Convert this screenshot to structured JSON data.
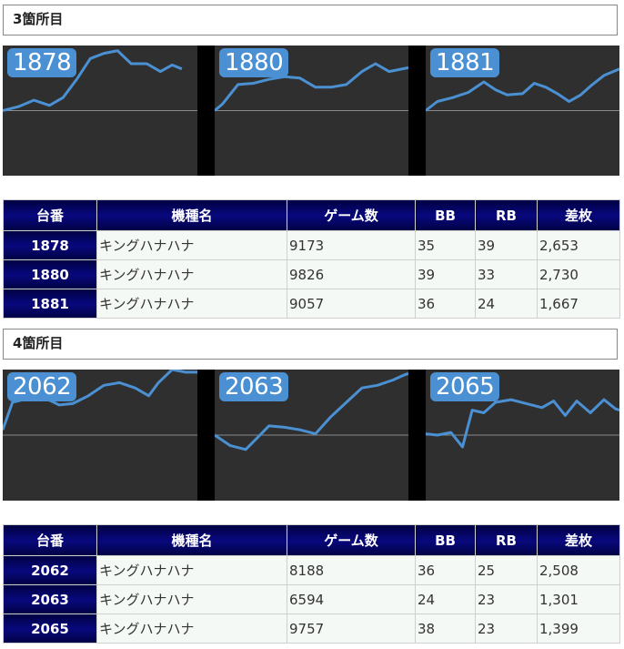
{
  "sections": [
    {
      "title": "3箇所目",
      "graphs": [
        {
          "label": "1878",
          "points": [
            [
              0,
              0.5
            ],
            [
              0.08,
              0.47
            ],
            [
              0.16,
              0.42
            ],
            [
              0.24,
              0.46
            ],
            [
              0.31,
              0.4
            ],
            [
              0.38,
              0.26
            ],
            [
              0.45,
              0.1
            ],
            [
              0.52,
              0.06
            ],
            [
              0.59,
              0.04
            ],
            [
              0.66,
              0.14
            ],
            [
              0.74,
              0.14
            ],
            [
              0.81,
              0.2
            ],
            [
              0.87,
              0.15
            ],
            [
              0.92,
              0.18
            ]
          ]
        },
        {
          "label": "1880",
          "points": [
            [
              0,
              0.5
            ],
            [
              0.04,
              0.45
            ],
            [
              0.12,
              0.3
            ],
            [
              0.2,
              0.29
            ],
            [
              0.28,
              0.26
            ],
            [
              0.36,
              0.24
            ],
            [
              0.44,
              0.25
            ],
            [
              0.52,
              0.32
            ],
            [
              0.6,
              0.32
            ],
            [
              0.68,
              0.3
            ],
            [
              0.76,
              0.2
            ],
            [
              0.83,
              0.14
            ],
            [
              0.9,
              0.2
            ],
            [
              1.0,
              0.17
            ]
          ]
        },
        {
          "label": "1881",
          "points": [
            [
              0,
              0.5
            ],
            [
              0.06,
              0.43
            ],
            [
              0.14,
              0.4
            ],
            [
              0.22,
              0.36
            ],
            [
              0.3,
              0.28
            ],
            [
              0.36,
              0.34
            ],
            [
              0.42,
              0.38
            ],
            [
              0.5,
              0.37
            ],
            [
              0.56,
              0.29
            ],
            [
              0.62,
              0.32
            ],
            [
              0.68,
              0.37
            ],
            [
              0.74,
              0.43
            ],
            [
              0.8,
              0.38
            ],
            [
              0.86,
              0.3
            ],
            [
              0.92,
              0.23
            ],
            [
              1.0,
              0.18
            ]
          ]
        }
      ],
      "table": {
        "headers": [
          "台番",
          "機種名",
          "ゲーム数",
          "BB",
          "RB",
          "差枚"
        ],
        "rows": [
          [
            "1878",
            "キングハナハナ",
            "9173",
            "35",
            "39",
            "2,653"
          ],
          [
            "1880",
            "キングハナハナ",
            "9826",
            "39",
            "33",
            "2,730"
          ],
          [
            "1881",
            "キングハナハナ",
            "9057",
            "36",
            "24",
            "1,667"
          ]
        ]
      }
    },
    {
      "title": "4箇所目",
      "graphs": [
        {
          "label": "2062",
          "points": [
            [
              0,
              0.46
            ],
            [
              0.05,
              0.25
            ],
            [
              0.13,
              0.22
            ],
            [
              0.22,
              0.22
            ],
            [
              0.29,
              0.27
            ],
            [
              0.36,
              0.26
            ],
            [
              0.44,
              0.2
            ],
            [
              0.52,
              0.12
            ],
            [
              0.6,
              0.1
            ],
            [
              0.68,
              0.14
            ],
            [
              0.75,
              0.2
            ],
            [
              0.8,
              0.1
            ],
            [
              0.87,
              0.0
            ],
            [
              0.94,
              0.02
            ],
            [
              1.0,
              0.02
            ]
          ]
        },
        {
          "label": "2063",
          "points": [
            [
              0,
              0.5
            ],
            [
              0.08,
              0.58
            ],
            [
              0.16,
              0.61
            ],
            [
              0.22,
              0.52
            ],
            [
              0.28,
              0.43
            ],
            [
              0.36,
              0.44
            ],
            [
              0.44,
              0.46
            ],
            [
              0.52,
              0.49
            ],
            [
              0.6,
              0.36
            ],
            [
              0.68,
              0.25
            ],
            [
              0.76,
              0.14
            ],
            [
              0.84,
              0.12
            ],
            [
              0.92,
              0.08
            ],
            [
              0.98,
              0.04
            ],
            [
              1.0,
              0.03
            ]
          ]
        },
        {
          "label": "2065",
          "points": [
            [
              0,
              0.49
            ],
            [
              0.06,
              0.5
            ],
            [
              0.13,
              0.48
            ],
            [
              0.19,
              0.59
            ],
            [
              0.24,
              0.31
            ],
            [
              0.3,
              0.33
            ],
            [
              0.36,
              0.25
            ],
            [
              0.44,
              0.23
            ],
            [
              0.52,
              0.26
            ],
            [
              0.6,
              0.29
            ],
            [
              0.66,
              0.24
            ],
            [
              0.72,
              0.35
            ],
            [
              0.78,
              0.24
            ],
            [
              0.85,
              0.33
            ],
            [
              0.92,
              0.23
            ],
            [
              0.98,
              0.3
            ],
            [
              1.0,
              0.31
            ]
          ]
        }
      ],
      "table": {
        "headers": [
          "台番",
          "機種名",
          "ゲーム数",
          "BB",
          "RB",
          "差枚"
        ],
        "rows": [
          [
            "2062",
            "キングハナハナ",
            "8188",
            "36",
            "25",
            "2,508"
          ],
          [
            "2063",
            "キングハナハナ",
            "6594",
            "24",
            "23",
            "1,301"
          ],
          [
            "2065",
            "キングハナハナ",
            "9757",
            "38",
            "23",
            "1,399"
          ]
        ]
      }
    }
  ]
}
